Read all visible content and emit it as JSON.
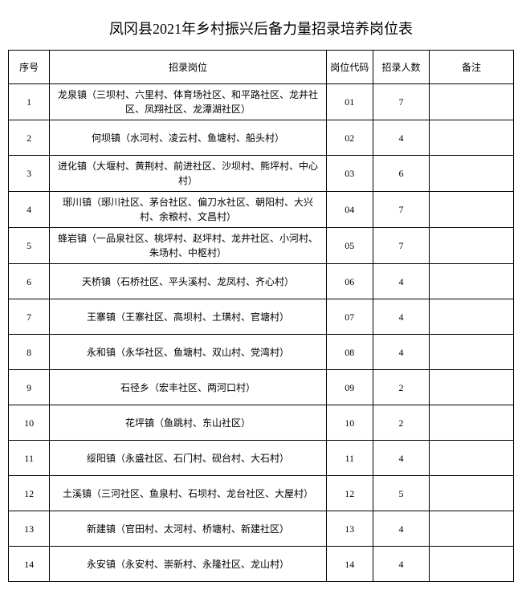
{
  "title": "凤冈县2021年乡村振兴后备力量招录培养岗位表",
  "columns": [
    "序号",
    "招录岗位",
    "岗位代码",
    "招录人数",
    "备注"
  ],
  "rows": [
    {
      "seq": "1",
      "position": "龙泉镇（三坝村、六里村、体育场社区、和平路社区、龙井社区、凤翔社区、龙潭湖社区）",
      "code": "01",
      "count": "7",
      "note": ""
    },
    {
      "seq": "2",
      "position": "何坝镇（水河村、凌云村、鱼塘村、船头村）",
      "code": "02",
      "count": "4",
      "note": ""
    },
    {
      "seq": "3",
      "position": "进化镇（大堰村、黄荆村、前进社区、沙坝村、熊坪村、中心村）",
      "code": "03",
      "count": "6",
      "note": ""
    },
    {
      "seq": "4",
      "position": "琊川镇（琊川社区、茅台社区、偏刀水社区、朝阳村、大兴村、余粮村、文昌村）",
      "code": "04",
      "count": "7",
      "note": ""
    },
    {
      "seq": "5",
      "position": "蜂岩镇（一品泉社区、桃坪村、赵坪村、龙井社区、小河村、朱场村、中枢村）",
      "code": "05",
      "count": "7",
      "note": ""
    },
    {
      "seq": "6",
      "position": "天桥镇（石桥社区、平头溪村、龙凤村、齐心村）",
      "code": "06",
      "count": "4",
      "note": ""
    },
    {
      "seq": "7",
      "position": "王寨镇（王寨社区、高坝村、土璜村、官塘村）",
      "code": "07",
      "count": "4",
      "note": ""
    },
    {
      "seq": "8",
      "position": "永和镇（永华社区、鱼塘村、双山村、党湾村）",
      "code": "08",
      "count": "4",
      "note": ""
    },
    {
      "seq": "9",
      "position": "石径乡（宏丰社区、两河口村）",
      "code": "09",
      "count": "2",
      "note": ""
    },
    {
      "seq": "10",
      "position": "花坪镇（鱼跳村、东山社区）",
      "code": "10",
      "count": "2",
      "note": ""
    },
    {
      "seq": "11",
      "position": "绥阳镇（永盛社区、石门村、砚台村、大石村）",
      "code": "11",
      "count": "4",
      "note": ""
    },
    {
      "seq": "12",
      "position": "土溪镇（三河社区、鱼泉村、石坝村、龙台社区、大屋村）",
      "code": "12",
      "count": "5",
      "note": ""
    },
    {
      "seq": "13",
      "position": "新建镇（官田村、太河村、桥塘村、新建社区）",
      "code": "13",
      "count": "4",
      "note": ""
    },
    {
      "seq": "14",
      "position": "永安镇（永安村、崇新村、永隆社区、龙山村）",
      "code": "14",
      "count": "4",
      "note": ""
    }
  ]
}
